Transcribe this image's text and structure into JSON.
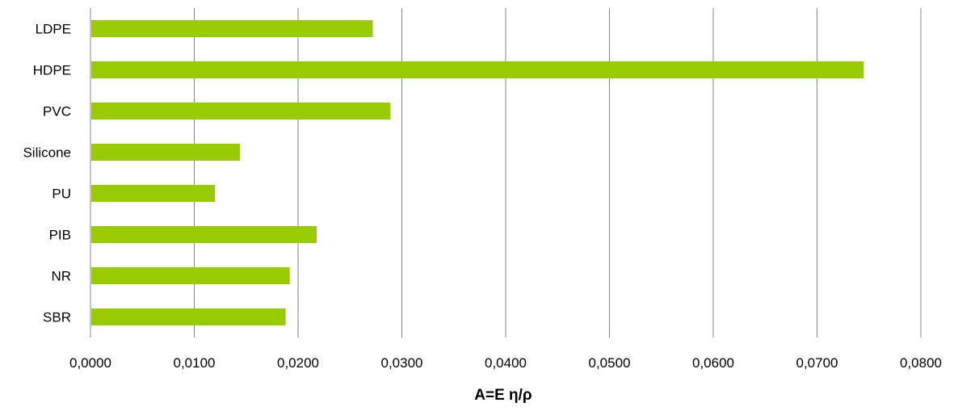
{
  "chart_data": {
    "type": "bar",
    "orientation": "horizontal",
    "categories": [
      "LDPE",
      "HDPE",
      "PVC",
      "Silicone",
      "PU",
      "PIB",
      "NR",
      "SBR"
    ],
    "values": [
      0.0272,
      0.0745,
      0.0289,
      0.0144,
      0.012,
      0.0218,
      0.0192,
      0.0188
    ],
    "xlabel": "A=E η/ρ",
    "ylabel": "",
    "title": "",
    "xlim": [
      0,
      0.08
    ],
    "xticks": [
      "0,0000",
      "0,0100",
      "0,0200",
      "0,0300",
      "0,0400",
      "0,0500",
      "0,0600",
      "0,0700",
      "0,0800"
    ],
    "grid": "vertical",
    "legend": "none",
    "bar_color": "#99cc00",
    "grid_color": "#868686"
  }
}
